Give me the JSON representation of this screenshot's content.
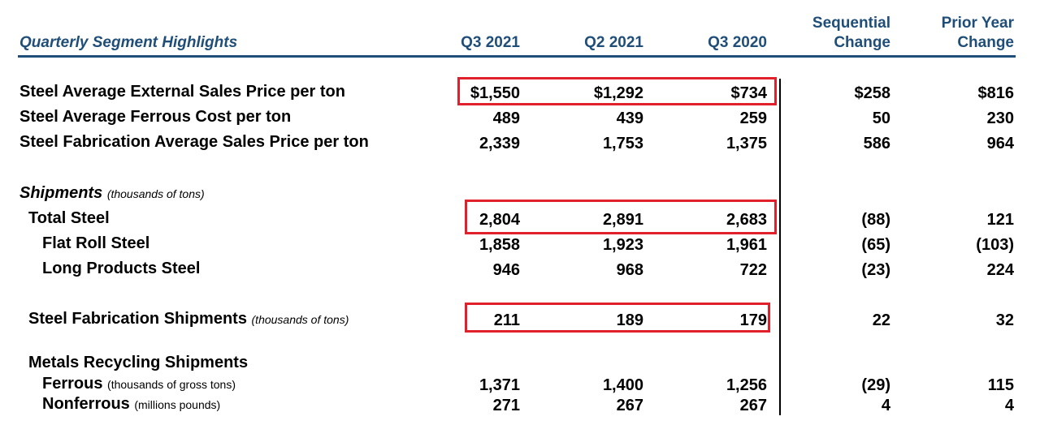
{
  "header": {
    "title": "Quarterly Segment Highlights",
    "cols": [
      "Q3 2021",
      "Q2 2021",
      "Q3 2020"
    ],
    "seq_line1": "Sequential",
    "seq_line2": "Change",
    "prior_line1": "Prior Year",
    "prior_line2": "Change"
  },
  "colors": {
    "header_text": "#1f4e79",
    "highlight_box": "#e0202a"
  },
  "rows": {
    "price": {
      "label": "Steel Average External Sales Price per ton",
      "values": [
        "$1,550",
        "$1,292",
        "$734",
        "$258",
        "$816"
      ]
    },
    "ferrous_cost": {
      "label": "Steel Average Ferrous Cost per ton",
      "values": [
        "489",
        "439",
        "259",
        "50",
        "230"
      ]
    },
    "fab_price": {
      "label": "Steel Fabrication Average Sales Price per ton",
      "values": [
        "2,339",
        "1,753",
        "1,375",
        "586",
        "964"
      ]
    },
    "shipments_heading": {
      "label": "Shipments",
      "note": "(thousands of tons)"
    },
    "total_steel": {
      "label": "Total Steel",
      "values": [
        "2,804",
        "2,891",
        "2,683",
        "(88)",
        "121"
      ]
    },
    "flat_roll": {
      "label": "Flat Roll Steel",
      "values": [
        "1,858",
        "1,923",
        "1,961",
        "(65)",
        "(103)"
      ]
    },
    "long_products": {
      "label": "Long Products Steel",
      "values": [
        "946",
        "968",
        "722",
        "(23)",
        "224"
      ]
    },
    "fab_shipments": {
      "label": "Steel Fabrication Shipments",
      "note": "(thousands of tons)",
      "values": [
        "211",
        "189",
        "179",
        "22",
        "32"
      ]
    },
    "recycling_heading": {
      "label": "Metals Recycling Shipments"
    },
    "ferrous": {
      "label": "Ferrous",
      "note": "(thousands of gross tons)",
      "values": [
        "1,371",
        "1,400",
        "1,256",
        "(29)",
        "115"
      ]
    },
    "nonferrous": {
      "label": "Nonferrous",
      "note": "(millions pounds)",
      "values": [
        "271",
        "267",
        "267",
        "4",
        "4"
      ]
    }
  }
}
